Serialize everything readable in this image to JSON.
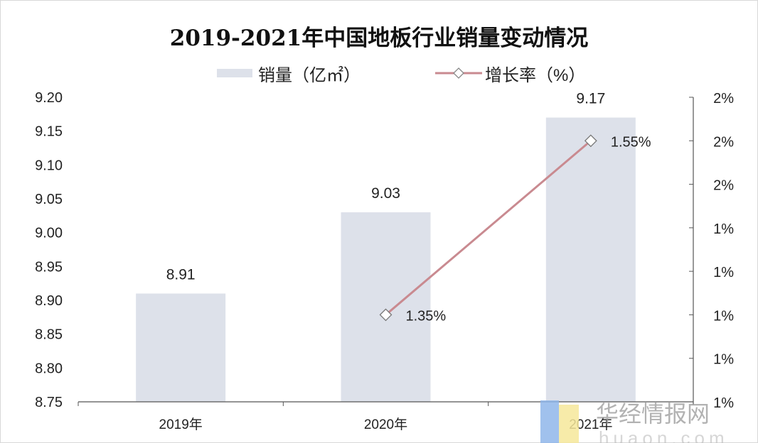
{
  "chart_data": {
    "type": "bar+line",
    "title": "2019-2021年中国地板行业销量变动情况",
    "categories": [
      "2019年",
      "2020年",
      "2021年"
    ],
    "series": [
      {
        "name": "销量（亿㎡）",
        "type": "bar",
        "axis": "left",
        "values": [
          8.91,
          9.03,
          9.17
        ],
        "data_labels": [
          "8.91",
          "9.03",
          "9.17"
        ],
        "color": "#dde1ea"
      },
      {
        "name": "增长率（%）",
        "type": "line",
        "axis": "right",
        "values": [
          null,
          1.35,
          1.55
        ],
        "data_labels": [
          "",
          "1.35%",
          "1.55%"
        ],
        "color": "#c98a90",
        "marker": "diamond-hollow"
      }
    ],
    "left_axis": {
      "ylim": [
        8.75,
        9.2
      ],
      "ticks": [
        "8.75",
        "8.80",
        "8.85",
        "8.90",
        "8.95",
        "9.00",
        "9.05",
        "9.10",
        "9.15",
        "9.20"
      ]
    },
    "right_axis": {
      "ylim": [
        1.25,
        1.6
      ],
      "ticks": [
        "1%",
        "1%",
        "1%",
        "1%",
        "1%",
        "2%",
        "2%",
        "2%"
      ]
    },
    "grid": false,
    "legend": "top"
  },
  "watermark": {
    "text": "华经情报网",
    "subtext": "huaon.com"
  }
}
